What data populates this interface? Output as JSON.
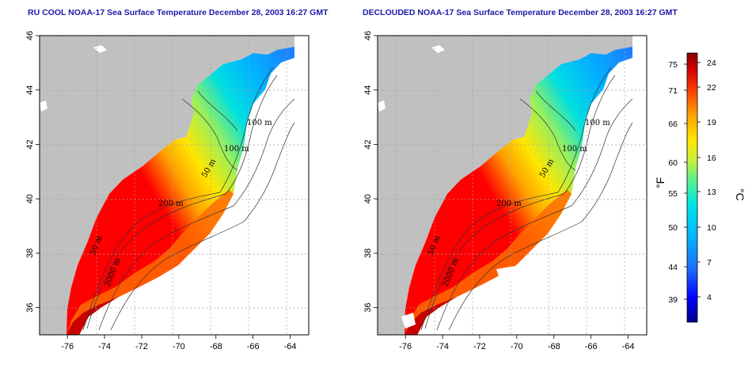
{
  "panels": [
    {
      "id": "left",
      "title": "RU COOL NOAA-17 Sea Surface Temperature December 28, 2003 16:27 GMT",
      "declouded": false
    },
    {
      "id": "right",
      "title": "DECLOUDED NOAA-17 Sea Surface Temperature December 28, 2003 16:27 GMT",
      "declouded": true
    }
  ],
  "map": {
    "lon_range": [
      -77.5,
      -63
    ],
    "lat_range": [
      35,
      46
    ],
    "x_ticks": [
      "-76",
      "-74",
      "-72",
      "-70",
      "-68",
      "-66",
      "-64"
    ],
    "y_ticks": [
      "36",
      "38",
      "40",
      "42",
      "44",
      "46"
    ],
    "contour_labels": [
      "100 m",
      "100 m",
      "50 m",
      "200 m",
      "50 m",
      "2000 m"
    ],
    "land_color": "#c0c0c0",
    "grid": true
  },
  "colorbar": {
    "fahrenheit_ticks": [
      "75",
      "71",
      "66",
      "60",
      "55",
      "50",
      "44",
      "39"
    ],
    "celsius_ticks": [
      "24",
      "22",
      "19",
      "16",
      "13",
      "10",
      "7",
      "4"
    ],
    "fahrenheit_unit": "°F",
    "celsius_unit": "°C",
    "colors": [
      "#00008b",
      "#0000ff",
      "#1e6fff",
      "#00b4ff",
      "#00e6e6",
      "#5ef08c",
      "#c8f03c",
      "#ffe600",
      "#ffa000",
      "#ff4000",
      "#d00000",
      "#8b0000"
    ]
  }
}
